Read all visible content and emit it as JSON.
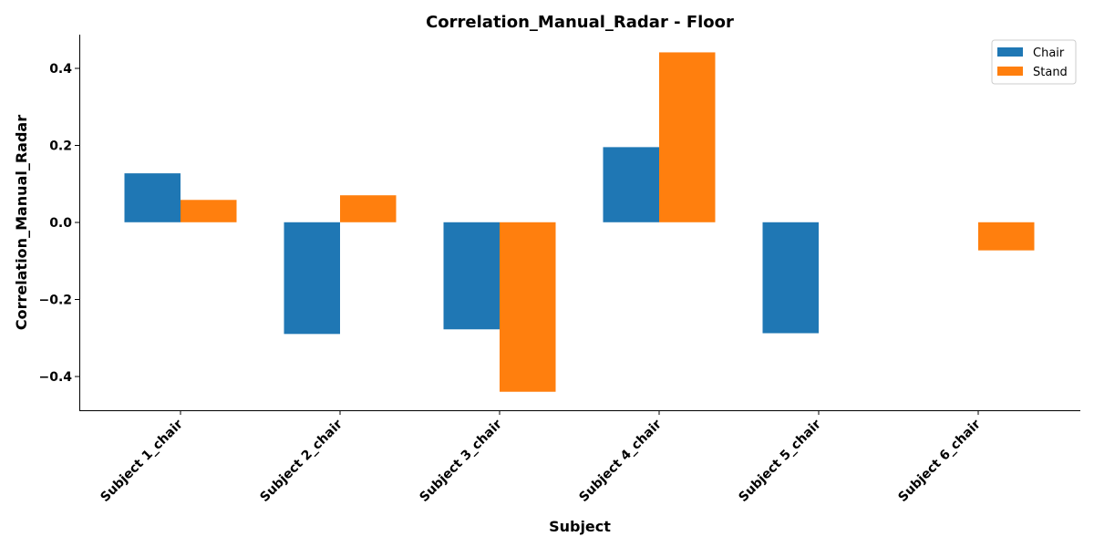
{
  "chart_data": {
    "type": "bar",
    "title": "Correlation_Manual_Radar - Floor",
    "xlabel": "Subject",
    "ylabel": "Correlation_Manual_Radar",
    "categories": [
      "Subject 1_chair",
      "Subject 2_chair",
      "Subject 3_chair",
      "Subject 4_chair",
      "Subject 5_chair",
      "Subject 6_chair"
    ],
    "series": [
      {
        "name": "Chair",
        "color": "#1f77b4",
        "values": [
          0.127,
          -0.29,
          -0.278,
          0.195,
          -0.288,
          null
        ]
      },
      {
        "name": "Stand",
        "color": "#ff7f0e",
        "values": [
          0.058,
          0.07,
          -0.44,
          0.441,
          null,
          -0.073
        ]
      }
    ],
    "ylim": [
      -0.488,
      0.487
    ],
    "yticks": [
      -0.4,
      -0.2,
      0.0,
      0.2,
      0.4
    ],
    "ytick_labels": [
      "−0.4",
      "−0.2",
      "0.0",
      "0.2",
      "0.4"
    ],
    "grid": false,
    "legend_position": "top-right"
  }
}
